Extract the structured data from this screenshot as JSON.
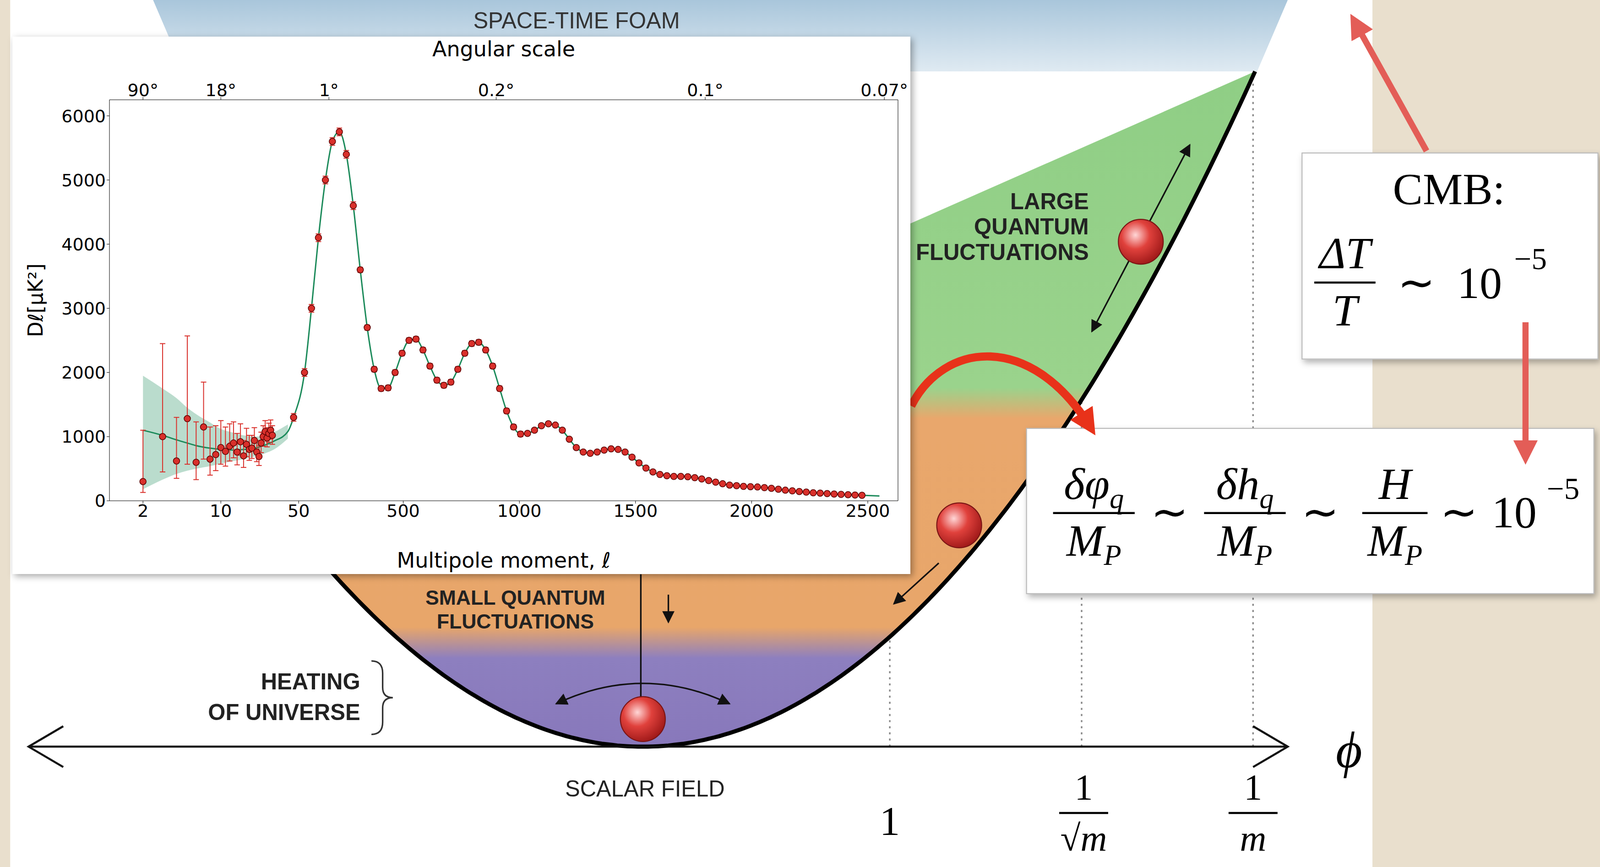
{
  "diagram": {
    "top_band": "SPACE-TIME FOAM",
    "upper_region": [
      "LARGE",
      "QUANTUM",
      "FLUCTUATIONS"
    ],
    "middle_region": [
      "SMALL QUANTUM",
      "FLUCTUATIONS"
    ],
    "bottom_region": [
      "HEATING",
      "OF UNIVERSE"
    ],
    "axis": {
      "label": "ϕ",
      "caption": "SCALAR FIELD",
      "ticks": [
        "1",
        {
          "numerator": "1",
          "denominator": "√m"
        },
        {
          "numerator": "1",
          "denominator": "m"
        }
      ]
    },
    "cmb_box": {
      "title": "CMB:",
      "formula": {
        "numerator": "ΔT",
        "denominator": "T",
        "relation": "∼",
        "base": "10",
        "exponent": "−5"
      }
    },
    "estimate_box": {
      "terms": [
        {
          "numerator": "δφ",
          "numerator_sub": "q",
          "denominator": "M",
          "denominator_sub": "P"
        },
        {
          "numerator": "δh",
          "numerator_sub": "q",
          "denominator": "M",
          "denominator_sub": "P"
        },
        {
          "numerator": "H",
          "denominator": "M",
          "denominator_sub": "P"
        }
      ],
      "relation": "∼",
      "base": "10",
      "exponent": "−5"
    }
  },
  "chart_data": {
    "type": "scatter",
    "xlabel": "Multipole moment, ℓ",
    "ylabel": "Dℓ[μK²]",
    "x2label": "Angular scale",
    "xlim": [
      1,
      2630
    ],
    "xticks": [
      2,
      10,
      50,
      500,
      1000,
      1500,
      2000,
      2500
    ],
    "x2ticks": [
      {
        "value": 2,
        "label": "90°"
      },
      {
        "value": 10,
        "label": "18°"
      },
      {
        "value": 180,
        "label": "1°"
      },
      {
        "value": 900,
        "label": "0.2°"
      },
      {
        "value": 1800,
        "label": "0.1°"
      },
      {
        "value": 2571,
        "label": "0.07°"
      }
    ],
    "ylim": [
      0,
      6250
    ],
    "yticks": [
      0,
      1000,
      2000,
      3000,
      4000,
      5000,
      6000
    ],
    "grid": false,
    "series": [
      {
        "type": "scatter",
        "color": "#d9302b",
        "marker": "circle",
        "x": [
          2,
          3,
          4,
          5,
          6,
          7,
          8,
          9,
          10,
          11,
          12,
          13,
          14,
          15,
          16,
          17,
          18,
          19,
          20,
          21,
          22,
          23,
          24,
          25,
          26,
          27,
          28,
          29,
          45,
          75,
          105,
          135,
          165,
          195,
          225,
          255,
          285,
          315,
          345,
          375,
          405,
          435,
          465,
          495,
          525,
          555,
          585,
          615,
          645,
          675,
          705,
          735,
          765,
          795,
          825,
          855,
          885,
          915,
          945,
          975,
          1005,
          1035,
          1065,
          1095,
          1125,
          1155,
          1185,
          1215,
          1245,
          1275,
          1305,
          1335,
          1365,
          1395,
          1425,
          1455,
          1485,
          1515,
          1545,
          1575,
          1605,
          1635,
          1665,
          1695,
          1725,
          1755,
          1785,
          1815,
          1845,
          1875,
          1905,
          1935,
          1965,
          1995,
          2025,
          2055,
          2085,
          2115,
          2145,
          2175,
          2205,
          2235,
          2265,
          2295,
          2325,
          2355,
          2385,
          2415,
          2445,
          2475
        ],
        "values": [
          300,
          1000,
          620,
          1280,
          600,
          1150,
          650,
          720,
          830,
          770,
          850,
          900,
          760,
          920,
          700,
          880,
          800,
          820,
          940,
          760,
          690,
          900,
          1000,
          1080,
          980,
          1050,
          1100,
          1020,
          1300,
          2000,
          3000,
          4100,
          5000,
          5600,
          5750,
          5400,
          4600,
          3600,
          2700,
          2050,
          1750,
          1760,
          2000,
          2300,
          2500,
          2520,
          2350,
          2100,
          1880,
          1800,
          1850,
          2050,
          2300,
          2450,
          2470,
          2350,
          2100,
          1750,
          1400,
          1150,
          1040,
          1050,
          1100,
          1170,
          1200,
          1180,
          1100,
          960,
          830,
          760,
          740,
          760,
          790,
          810,
          800,
          760,
          680,
          590,
          510,
          450,
          410,
          390,
          380,
          380,
          375,
          360,
          340,
          315,
          290,
          265,
          245,
          235,
          225,
          220,
          215,
          205,
          195,
          180,
          165,
          155,
          145,
          135,
          125,
          120,
          112,
          105,
          100,
          95,
          90,
          85
        ],
        "err_minus": [
          170,
          550,
          270,
          710,
          270,
          500,
          250,
          250,
          260,
          230,
          230,
          230,
          200,
          210,
          180,
          190,
          170,
          160,
          160,
          150,
          140,
          150,
          150,
          150,
          140,
          140,
          140,
          140,
          60,
          60,
          60,
          60,
          60,
          60,
          60,
          60,
          60,
          40,
          40,
          40,
          40,
          40,
          40,
          40,
          40,
          40,
          40,
          40,
          40,
          40,
          40,
          40,
          40,
          40,
          40,
          40,
          40,
          40,
          40,
          40,
          40,
          25,
          25,
          25,
          25,
          25,
          25,
          25,
          25,
          25,
          25,
          25,
          25,
          25,
          25,
          25,
          25,
          25,
          25,
          25,
          25,
          25,
          25,
          25,
          25,
          25,
          25,
          25,
          25,
          25,
          25,
          25,
          25,
          25,
          25,
          25,
          25,
          25,
          25,
          25,
          25,
          25,
          25,
          25,
          25,
          25,
          25,
          25,
          25,
          25
        ],
        "err_plus": [
          800,
          1450,
          680,
          1290,
          630,
          700,
          500,
          450,
          420,
          380,
          350,
          330,
          290,
          280,
          240,
          250,
          220,
          200,
          200,
          180,
          170,
          170,
          170,
          170,
          160,
          160,
          160,
          150,
          60,
          60,
          60,
          60,
          60,
          60,
          60,
          60,
          60,
          40,
          40,
          40,
          40,
          40,
          40,
          40,
          40,
          40,
          40,
          40,
          40,
          40,
          40,
          40,
          40,
          40,
          40,
          40,
          40,
          40,
          40,
          40,
          40,
          25,
          25,
          25,
          25,
          25,
          25,
          25,
          25,
          25,
          25,
          25,
          25,
          25,
          25,
          25,
          25,
          25,
          25,
          25,
          25,
          25,
          25,
          25,
          25,
          25,
          25,
          25,
          25,
          25,
          25,
          25,
          25,
          25,
          25,
          25,
          25,
          25,
          25,
          25,
          25,
          25,
          25,
          25,
          25,
          25,
          25,
          25,
          25,
          25
        ]
      },
      {
        "type": "line",
        "color": "#1b8a5a",
        "x": [
          2,
          3,
          4,
          5,
          6,
          8,
          10,
          13,
          16,
          20,
          25,
          30,
          40,
          45,
          75,
          105,
          135,
          165,
          195,
          225,
          255,
          285,
          315,
          345,
          375,
          405,
          435,
          465,
          495,
          525,
          555,
          585,
          615,
          645,
          675,
          705,
          735,
          765,
          795,
          825,
          855,
          885,
          915,
          945,
          975,
          1005,
          1035,
          1065,
          1095,
          1125,
          1155,
          1185,
          1215,
          1245,
          1275,
          1305,
          1335,
          1365,
          1395,
          1425,
          1455,
          1485,
          1515,
          1545,
          1575,
          1605,
          1635,
          1665,
          1695,
          1725,
          1755,
          1785,
          1815,
          1845,
          1875,
          1905,
          1935,
          1965,
          1995,
          2025,
          2055,
          2085,
          2115,
          2145,
          2175,
          2205,
          2235,
          2265,
          2295,
          2325,
          2355,
          2385,
          2415,
          2445,
          2475,
          2550
        ],
        "values": [
          1100,
          1020,
          950,
          900,
          860,
          820,
          800,
          790,
          800,
          820,
          870,
          930,
          1080,
          1300,
          2000,
          3000,
          4100,
          5000,
          5600,
          5750,
          5400,
          4600,
          3600,
          2700,
          2050,
          1750,
          1760,
          2000,
          2300,
          2500,
          2520,
          2350,
          2100,
          1880,
          1800,
          1850,
          2050,
          2300,
          2450,
          2470,
          2350,
          2100,
          1750,
          1400,
          1150,
          1040,
          1050,
          1100,
          1170,
          1200,
          1180,
          1100,
          960,
          830,
          760,
          740,
          760,
          790,
          810,
          800,
          760,
          680,
          590,
          510,
          450,
          410,
          390,
          380,
          380,
          375,
          360,
          340,
          315,
          290,
          265,
          245,
          235,
          225,
          220,
          215,
          205,
          195,
          180,
          165,
          155,
          145,
          135,
          125,
          120,
          112,
          105,
          100,
          95,
          90,
          85,
          75
        ],
        "band": {
          "x": [
            2,
            3,
            4,
            5,
            6,
            8,
            10,
            13,
            16,
            20,
            25,
            30,
            40
          ],
          "low": [
            180,
            330,
            420,
            470,
            500,
            540,
            580,
            620,
            650,
            690,
            740,
            800,
            970
          ],
          "high": [
            1950,
            1750,
            1600,
            1450,
            1350,
            1220,
            1120,
            1060,
            1020,
            1000,
            1020,
            1070,
            1190
          ]
        }
      }
    ]
  }
}
